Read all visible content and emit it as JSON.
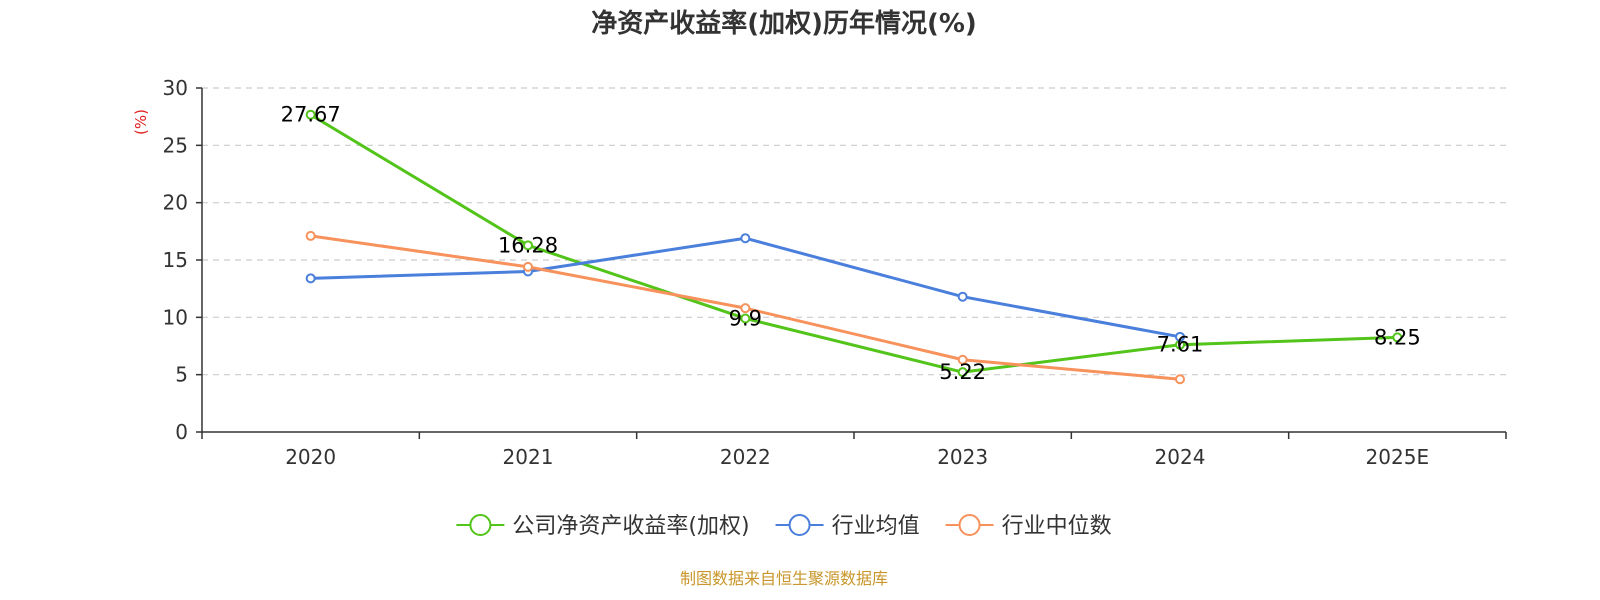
{
  "chart_data": {
    "type": "line",
    "title": "净资产收益率(加权)历年情况(%)",
    "ylabel": "(%)",
    "categories": [
      "2020",
      "2021",
      "2022",
      "2023",
      "2024",
      "2025E"
    ],
    "ylim": [
      0,
      30
    ],
    "yticks": [
      0,
      5,
      10,
      15,
      20,
      25,
      30
    ],
    "grid": true,
    "legend_position": "bottom",
    "series": [
      {
        "name": "公司净资产收益率(加权)",
        "color": "#52c41a",
        "values": [
          27.67,
          16.28,
          9.9,
          5.22,
          7.61,
          8.25
        ],
        "show_labels": true
      },
      {
        "name": "行业均值",
        "color": "#4a7fdc",
        "values": [
          13.4,
          14.0,
          16.9,
          11.8,
          8.3,
          null
        ],
        "show_labels": false
      },
      {
        "name": "行业中位数",
        "color": "#f7925c",
        "values": [
          17.1,
          14.4,
          10.8,
          6.3,
          4.6,
          null
        ],
        "show_labels": false
      }
    ],
    "source": "制图数据来自恒生聚源数据库",
    "source_color": "#c8962a",
    "unit_color": "#e02020"
  }
}
